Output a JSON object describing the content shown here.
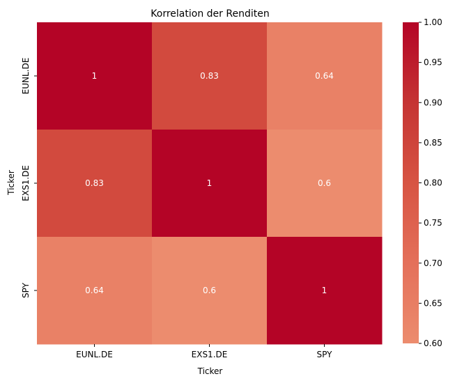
{
  "chart_data": {
    "type": "heatmap",
    "title": "Korrelation der Renditen",
    "xlabel": "Ticker",
    "ylabel": "Ticker",
    "x_categories": [
      "EUNL.DE",
      "EXS1.DE",
      "SPY"
    ],
    "y_categories": [
      "EUNL.DE",
      "EXS1.DE",
      "SPY"
    ],
    "values": [
      [
        1,
        0.83,
        0.64
      ],
      [
        0.83,
        1,
        0.6
      ],
      [
        0.64,
        0.6,
        1
      ]
    ],
    "value_labels": [
      [
        "1",
        "0.83",
        "0.64"
      ],
      [
        "0.83",
        "1",
        "0.6"
      ],
      [
        "0.64",
        "0.6",
        "1"
      ]
    ],
    "colorbar": {
      "range": [
        0.6,
        1.0
      ],
      "ticks": [
        "0.60",
        "0.65",
        "0.70",
        "0.75",
        "0.80",
        "0.85",
        "0.90",
        "0.95",
        "1.00"
      ],
      "color_low": "#ec8c6e",
      "color_high": "#b40426"
    },
    "grid": false,
    "annotations_color": "#ffffff"
  }
}
